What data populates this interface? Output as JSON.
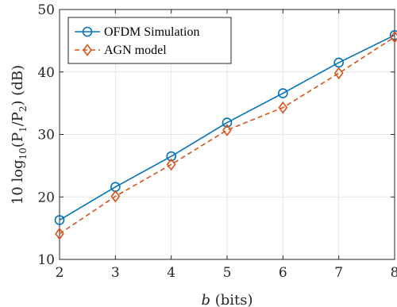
{
  "chart_data": {
    "type": "line",
    "xlabel_var": "b",
    "xlabel_unit": "(bits)",
    "ylabel_prefix": "10 log",
    "ylabel_sub": "10",
    "ylabel_mid1": "(P",
    "ylabel_sub1": "1",
    "ylabel_mid2": "/P",
    "ylabel_sub2": "2",
    "ylabel_suffix": ")  (dB)",
    "xlim": [
      2,
      8
    ],
    "ylim": [
      10,
      50
    ],
    "x_ticks": [
      "2",
      "3",
      "4",
      "5",
      "6",
      "7",
      "8"
    ],
    "y_ticks": [
      "10",
      "20",
      "30",
      "40",
      "50"
    ],
    "grid": true,
    "legend_position": "top-left",
    "series": [
      {
        "name": "OFDM Simulation",
        "color": "#0072BD",
        "marker": "circle",
        "line_style": "solid",
        "x": [
          2,
          3,
          4,
          5,
          6,
          7,
          8
        ],
        "y": [
          16.3,
          21.6,
          26.5,
          31.9,
          36.6,
          41.5,
          45.9
        ]
      },
      {
        "name": "AGN model",
        "color": "#D95319",
        "marker": "diamond",
        "line_style": "dashed",
        "x": [
          2,
          3,
          4,
          5,
          6,
          7,
          8
        ],
        "y": [
          14.1,
          20.1,
          25.2,
          30.7,
          34.3,
          39.8,
          45.6
        ]
      }
    ]
  }
}
